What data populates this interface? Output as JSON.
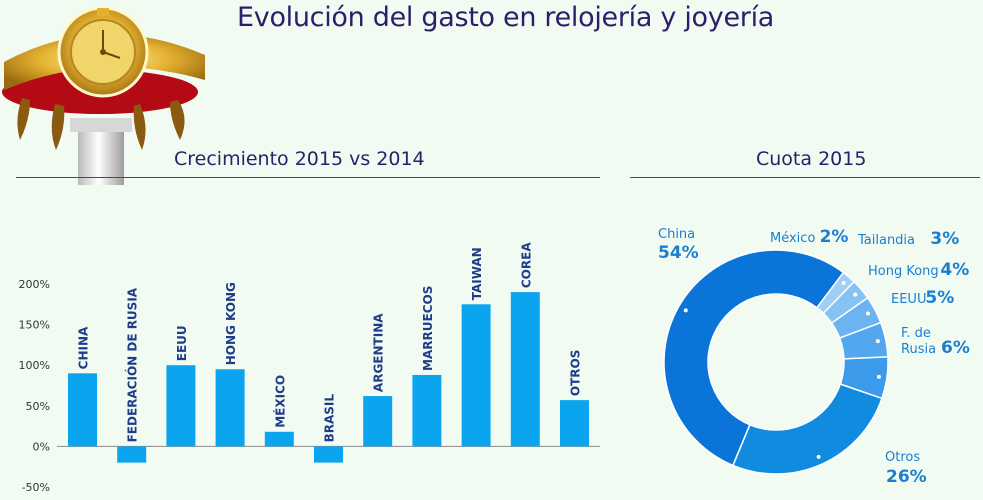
{
  "header": {
    "title": "Evolución del gasto en relojería y joyería"
  },
  "colors": {
    "bar": "#0aa5ee",
    "title": "#2b1f6b",
    "accent": "#1a7fd0"
  },
  "chart_data": [
    {
      "type": "bar",
      "title": "Crecimiento 2015 vs 2014",
      "categories": [
        "CHINA",
        "FEDERACIÓN DE RUSIA",
        "EEUU",
        "HONG KONG",
        "MÉXICO",
        "BRASIL",
        "ARGENTINA",
        "MARRUECOS",
        "TAIWAN",
        "COREA",
        "OTROS"
      ],
      "values": [
        90,
        -20,
        100,
        95,
        18,
        -20,
        62,
        88,
        175,
        190,
        57
      ],
      "ylim": [
        -50,
        200
      ],
      "yticks": [
        -50,
        0,
        50,
        100,
        150,
        200
      ],
      "ytick_labels": [
        "-50%",
        "0%",
        "50%",
        "100%",
        "150%",
        "200%"
      ],
      "xlabel": "",
      "ylabel": ""
    },
    {
      "type": "pie",
      "title": "Cuota 2015",
      "slices": [
        {
          "label": "China",
          "value": 54,
          "value_label": "54%",
          "color": "#0a74d8"
        },
        {
          "label": "México",
          "value": 2,
          "value_label": "2%",
          "color": "#9fcff7"
        },
        {
          "label": "Tailandia",
          "value": 3,
          "value_label": "3%",
          "color": "#86c2f4"
        },
        {
          "label": "Hong Kong",
          "value": 4,
          "value_label": "4%",
          "color": "#6cb4f1"
        },
        {
          "label": "EEUU",
          "value": 5,
          "value_label": "5%",
          "color": "#52a7ee"
        },
        {
          "label": "F. de Rusia",
          "value": 6,
          "value_label": "6%",
          "color": "#3b9aea"
        },
        {
          "label": "Otros",
          "value": 26,
          "value_label": "26%",
          "color": "#108be0"
        }
      ]
    }
  ]
}
